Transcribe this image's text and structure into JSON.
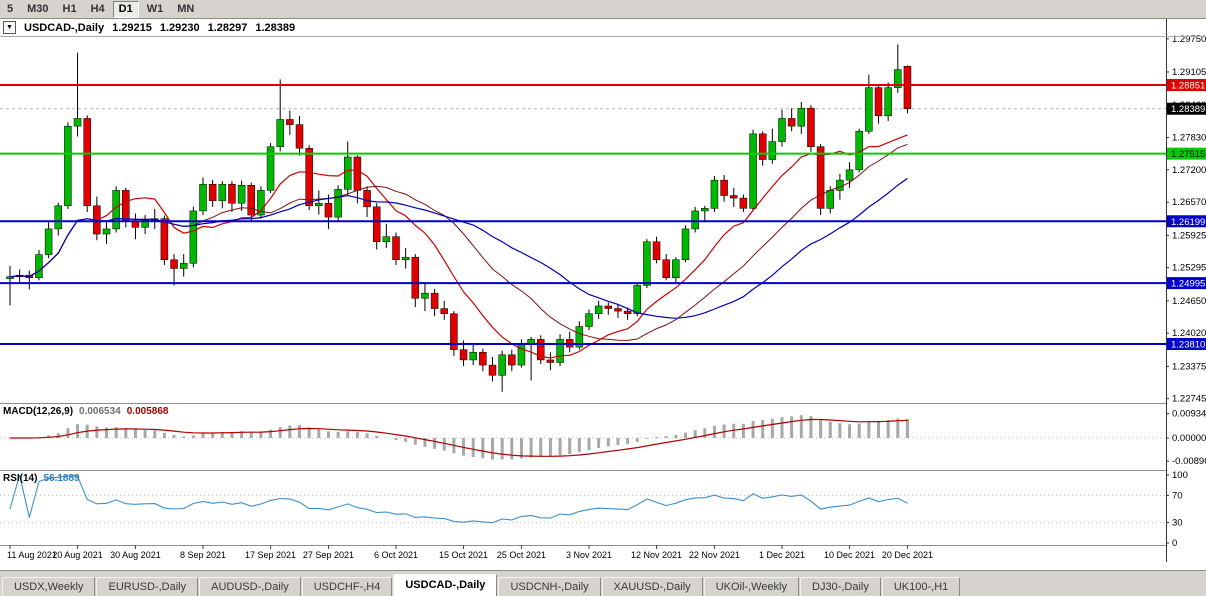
{
  "icons": {
    "chevron_down": "▼"
  },
  "toolbar": {
    "timeframes": [
      "5",
      "M30",
      "H1",
      "H4",
      "D1",
      "W1",
      "MN"
    ],
    "active": "D1"
  },
  "header": {
    "symbol": "USDCAD-,Daily",
    "open": "1.29215",
    "high": "1.29230",
    "low": "1.28297",
    "close": "1.28389"
  },
  "colors": {
    "bull": "#00b800",
    "bear": "#e00000",
    "ma_fast": "#cc0000",
    "ma_mid": "#7a1010",
    "ma_slow": "#0000b4",
    "macd_hist": "#a8a8a8",
    "macd_signal": "#b00000",
    "rsi_line": "#3c8fce",
    "level_red": "#dd0000",
    "level_green": "#00cc00",
    "level_blue": "#0000cc",
    "bid_label_bg": "#000000"
  },
  "chart_data": {
    "type": "candlestick",
    "symbol": "USDCAD",
    "timeframe": "Daily",
    "bid": "1.28389",
    "y_axis_labels": [
      "1.29750",
      "1.29105",
      "1.28460",
      "1.27830",
      "1.27200",
      "1.26570",
      "1.25925",
      "1.25295",
      "1.24650",
      "1.24020",
      "1.23375",
      "1.22745"
    ],
    "levels": [
      {
        "value": 1.28851,
        "label": "1.28851",
        "color": "#dd0000",
        "text": "#ffffff"
      },
      {
        "value": 1.27515,
        "label": "1.27515",
        "color": "#00cc00",
        "text": "#000000"
      },
      {
        "value": 1.26199,
        "label": "1.26199",
        "color": "#0000cc",
        "text": "#ffffff"
      },
      {
        "value": 1.24995,
        "label": "1.24995",
        "color": "#0000cc",
        "text": "#ffffff"
      },
      {
        "value": 1.2381,
        "label": "1.23810",
        "color": "#0000cc",
        "text": "#ffffff"
      }
    ],
    "date_ticks": [
      {
        "label": "11 Aug 2021",
        "i": 0
      },
      {
        "label": "20 Aug 2021",
        "i": 7
      },
      {
        "label": "30 Aug 2021",
        "i": 13
      },
      {
        "label": "8 Sep 2021",
        "i": 20
      },
      {
        "label": "17 Sep 2021",
        "i": 27
      },
      {
        "label": "27 Sep 2021",
        "i": 33
      },
      {
        "label": "6 Oct 2021",
        "i": 40
      },
      {
        "label": "15 Oct 2021",
        "i": 47
      },
      {
        "label": "25 Oct 2021",
        "i": 53
      },
      {
        "label": "3 Nov 2021",
        "i": 60
      },
      {
        "label": "12 Nov 2021",
        "i": 67
      },
      {
        "label": "22 Nov 2021",
        "i": 73
      },
      {
        "label": "1 Dec 2021",
        "i": 80
      },
      {
        "label": "10 Dec 2021",
        "i": 87
      },
      {
        "label": "20 Dec 2021",
        "i": 93
      }
    ],
    "candles": [
      [
        1.2508,
        1.2533,
        1.2456,
        1.2512
      ],
      [
        1.2512,
        1.2526,
        1.2498,
        1.2515
      ],
      [
        1.2515,
        1.2524,
        1.2487,
        1.251
      ],
      [
        1.251,
        1.2564,
        1.2505,
        1.2555
      ],
      [
        1.2555,
        1.2618,
        1.2548,
        1.2605
      ],
      [
        1.2605,
        1.2656,
        1.2592,
        1.265
      ],
      [
        1.265,
        1.2812,
        1.2644,
        1.2805
      ],
      [
        1.2805,
        1.2948,
        1.2785,
        1.282
      ],
      [
        1.282,
        1.2826,
        1.2638,
        1.265
      ],
      [
        1.265,
        1.2668,
        1.2583,
        1.2595
      ],
      [
        1.2595,
        1.2622,
        1.2576,
        1.2605
      ],
      [
        1.2605,
        1.2688,
        1.2598,
        1.268
      ],
      [
        1.268,
        1.2685,
        1.2608,
        1.262
      ],
      [
        1.262,
        1.2635,
        1.2585,
        1.2608
      ],
      [
        1.2608,
        1.2632,
        1.2595,
        1.2622
      ],
      [
        1.2622,
        1.2644,
        1.2605,
        1.2625
      ],
      [
        1.2625,
        1.2631,
        1.2535,
        1.2545
      ],
      [
        1.2545,
        1.2556,
        1.2495,
        1.2528
      ],
      [
        1.2528,
        1.2556,
        1.2512,
        1.2538
      ],
      [
        1.2538,
        1.2648,
        1.253,
        1.264
      ],
      [
        1.264,
        1.2705,
        1.2632,
        1.2692
      ],
      [
        1.2692,
        1.27,
        1.2648,
        1.266
      ],
      [
        1.266,
        1.2698,
        1.2645,
        1.2692
      ],
      [
        1.2692,
        1.2698,
        1.2638,
        1.2655
      ],
      [
        1.2655,
        1.2699,
        1.264,
        1.269
      ],
      [
        1.269,
        1.2695,
        1.262,
        1.2632
      ],
      [
        1.2632,
        1.2688,
        1.2625,
        1.268
      ],
      [
        1.268,
        1.2772,
        1.2675,
        1.2765
      ],
      [
        1.2765,
        1.2896,
        1.2756,
        1.2818
      ],
      [
        1.2818,
        1.2835,
        1.2788,
        1.2808
      ],
      [
        1.2808,
        1.2825,
        1.2748,
        1.2762
      ],
      [
        1.2762,
        1.2768,
        1.2642,
        1.265
      ],
      [
        1.265,
        1.268,
        1.2633,
        1.2655
      ],
      [
        1.2655,
        1.2672,
        1.2605,
        1.2628
      ],
      [
        1.2628,
        1.269,
        1.2618,
        1.2682
      ],
      [
        1.2682,
        1.2775,
        1.267,
        1.2745
      ],
      [
        1.2745,
        1.2748,
        1.2655,
        1.268
      ],
      [
        1.268,
        1.2688,
        1.2628,
        1.2648
      ],
      [
        1.2648,
        1.2655,
        1.2565,
        1.258
      ],
      [
        1.258,
        1.2615,
        1.2568,
        1.259
      ],
      [
        1.259,
        1.2598,
        1.2535,
        1.2545
      ],
      [
        1.2545,
        1.2568,
        1.2528,
        1.255
      ],
      [
        1.255,
        1.2556,
        1.2453,
        1.247
      ],
      [
        1.247,
        1.2498,
        1.2445,
        1.248
      ],
      [
        1.248,
        1.2488,
        1.2435,
        1.245
      ],
      [
        1.245,
        1.2465,
        1.2428,
        1.244
      ],
      [
        1.244,
        1.2445,
        1.2358,
        1.237
      ],
      [
        1.237,
        1.2388,
        1.2338,
        1.235
      ],
      [
        1.235,
        1.238,
        1.234,
        1.2365
      ],
      [
        1.2365,
        1.2372,
        1.2328,
        1.234
      ],
      [
        1.234,
        1.2356,
        1.2308,
        1.232
      ],
      [
        1.232,
        1.2368,
        1.2288,
        1.236
      ],
      [
        1.236,
        1.237,
        1.2328,
        1.234
      ],
      [
        1.234,
        1.239,
        1.2335,
        1.238
      ],
      [
        1.238,
        1.2395,
        1.231,
        1.239
      ],
      [
        1.239,
        1.2398,
        1.2342,
        1.235
      ],
      [
        1.235,
        1.2365,
        1.233,
        1.2345
      ],
      [
        1.2345,
        1.24,
        1.2338,
        1.239
      ],
      [
        1.239,
        1.2405,
        1.2365,
        1.2375
      ],
      [
        1.2375,
        1.2425,
        1.237,
        1.2415
      ],
      [
        1.2415,
        1.2448,
        1.2408,
        1.244
      ],
      [
        1.244,
        1.2465,
        1.243,
        1.2455
      ],
      [
        1.2455,
        1.2462,
        1.2438,
        1.245
      ],
      [
        1.245,
        1.2458,
        1.2432,
        1.2445
      ],
      [
        1.2445,
        1.2452,
        1.2428,
        1.244
      ],
      [
        1.244,
        1.25,
        1.2435,
        1.2495
      ],
      [
        1.2495,
        1.2585,
        1.249,
        1.258
      ],
      [
        1.258,
        1.259,
        1.2538,
        1.2545
      ],
      [
        1.2545,
        1.2556,
        1.2505,
        1.251
      ],
      [
        1.251,
        1.255,
        1.25,
        1.2545
      ],
      [
        1.2545,
        1.2612,
        1.254,
        1.2605
      ],
      [
        1.2605,
        1.2648,
        1.2598,
        1.264
      ],
      [
        1.264,
        1.265,
        1.2618,
        1.2645
      ],
      [
        1.2645,
        1.2708,
        1.2638,
        1.27
      ],
      [
        1.27,
        1.271,
        1.2658,
        1.267
      ],
      [
        1.267,
        1.2685,
        1.2648,
        1.2665
      ],
      [
        1.2665,
        1.2672,
        1.2638,
        1.2645
      ],
      [
        1.2645,
        1.2798,
        1.264,
        1.279
      ],
      [
        1.279,
        1.2795,
        1.2728,
        1.274
      ],
      [
        1.274,
        1.28,
        1.2732,
        1.2775
      ],
      [
        1.2775,
        1.2837,
        1.2765,
        1.282
      ],
      [
        1.282,
        1.284,
        1.2795,
        1.2805
      ],
      [
        1.2805,
        1.2852,
        1.279,
        1.284
      ],
      [
        1.284,
        1.2846,
        1.2755,
        1.2765
      ],
      [
        1.2765,
        1.277,
        1.2632,
        1.2645
      ],
      [
        1.2645,
        1.2688,
        1.2635,
        1.268
      ],
      [
        1.268,
        1.2712,
        1.2662,
        1.27
      ],
      [
        1.27,
        1.2735,
        1.2685,
        1.272
      ],
      [
        1.272,
        1.28,
        1.2715,
        1.2795
      ],
      [
        1.2795,
        1.2905,
        1.279,
        1.288
      ],
      [
        1.288,
        1.2885,
        1.281,
        1.2825
      ],
      [
        1.2825,
        1.289,
        1.2815,
        1.288
      ],
      [
        1.288,
        1.2964,
        1.287,
        1.2915
      ],
      [
        1.29215,
        1.2923,
        1.28297,
        1.28389
      ]
    ]
  },
  "macd_panel": {
    "label": "MACD(12,26,9)",
    "value_main": "0.006534",
    "value_signal": "0.005868",
    "axis_labels": [
      "0.00934",
      "0.00000",
      "-0.00890"
    ]
  },
  "rsi_panel": {
    "label": "RSI(14)",
    "value": "56.1889",
    "axis_labels": [
      "100",
      "70",
      "30",
      "0"
    ],
    "levels": [
      70,
      30
    ]
  },
  "tabs": {
    "items": [
      "USDX,Weekly",
      "EURUSD-,Daily",
      "AUDUSD-,Daily",
      "USDCHF-,H4",
      "USDCAD-,Daily",
      "USDCNH-,Daily",
      "XAUUSD-,Daily",
      "UKOil-,Weekly",
      "DJ30-,Daily",
      "UK100-,H1"
    ],
    "active": "USDCAD-,Daily"
  }
}
